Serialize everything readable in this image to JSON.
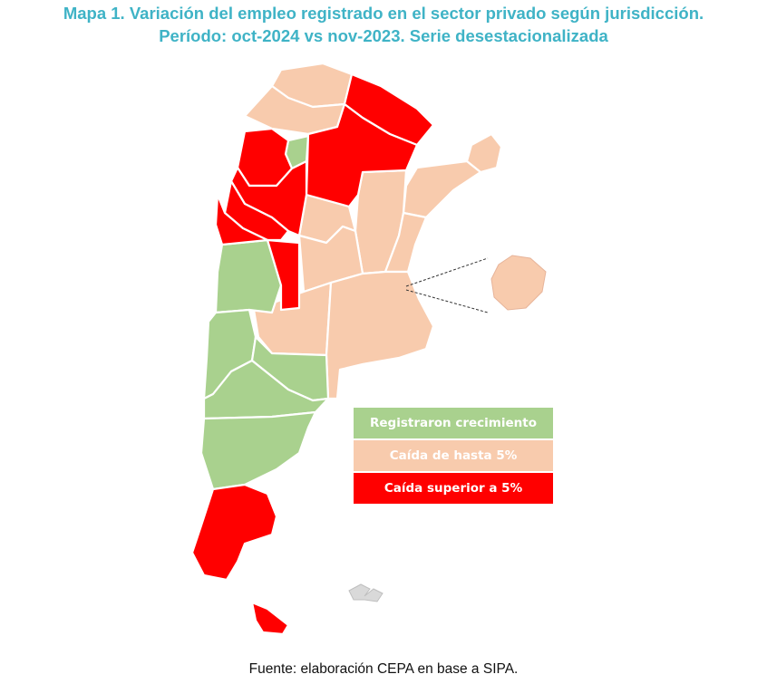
{
  "title": {
    "line1": "Mapa 1. Variación del empleo registrado en el sector privado según jurisdicción.",
    "line2": "Período: oct-2024 vs nov-2023. Serie desestacionalizada"
  },
  "colors": {
    "growth": "#a9d18e",
    "fall_under_5": "#f8cbad",
    "fall_over_5": "#ff0000",
    "title": "#3fb3c6"
  },
  "legend": {
    "growth": "Registraron crecimiento",
    "fall_under_5": "Caída de hasta 5%",
    "fall_over_5": "Caída superior a 5%"
  },
  "footer": "Fuente: elaboración CEPA en base a SIPA."
}
